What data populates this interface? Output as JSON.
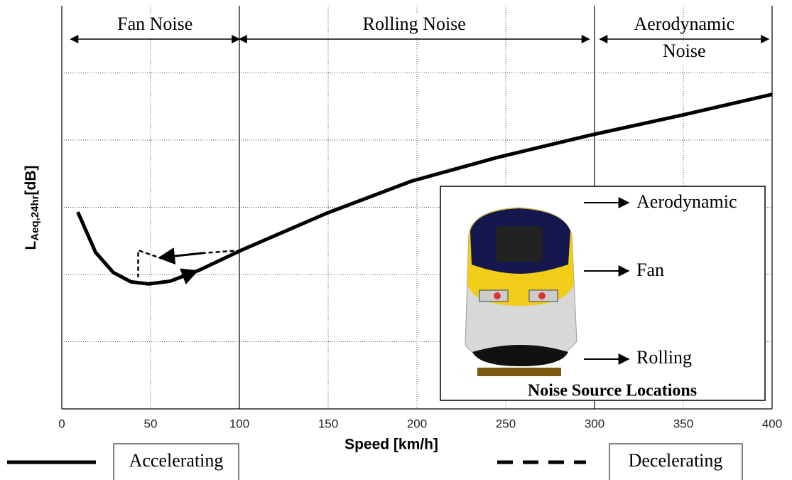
{
  "chart_data": {
    "type": "line",
    "xlabel": "Speed [km/h]",
    "ylabel": {
      "main": "L",
      "sub": "Aeq,24hr",
      "unit": "[dB]"
    },
    "xlim": [
      0,
      400
    ],
    "xticks": [
      0,
      50,
      100,
      150,
      200,
      250,
      300,
      350,
      400
    ],
    "ylim": [
      0,
      6
    ],
    "yticks": [
      1,
      2,
      3,
      4,
      5
    ],
    "grid": true,
    "regions": [
      {
        "label": "Fan Noise",
        "from": 5,
        "to": 100
      },
      {
        "label": "Rolling Noise",
        "from": 100,
        "to": 297
      },
      {
        "label": [
          "Aerodynamic",
          "Noise"
        ],
        "from": 303,
        "to": 398
      }
    ],
    "series": [
      {
        "name": "Accelerating",
        "color": "#000000",
        "dashed": false,
        "x": [
          9,
          19,
          29,
          39,
          49,
          61,
          77,
          101,
          149,
          197,
          245,
          297,
          349,
          400
        ],
        "values": [
          2.93,
          2.33,
          2.03,
          1.89,
          1.86,
          1.9,
          2.06,
          2.36,
          2.91,
          3.39,
          3.74,
          4.07,
          4.37,
          4.68
        ]
      },
      {
        "name": "Decelerating",
        "color": "#000000",
        "dashed": true,
        "x": [
          101,
          80,
          55,
          43,
          43
        ],
        "values": [
          2.36,
          2.32,
          2.25,
          2.36,
          1.96
        ]
      }
    ],
    "inset": {
      "title": "Noise Source Locations",
      "labels": [
        "Aerodynamic",
        "Fan",
        "Rolling"
      ]
    }
  }
}
